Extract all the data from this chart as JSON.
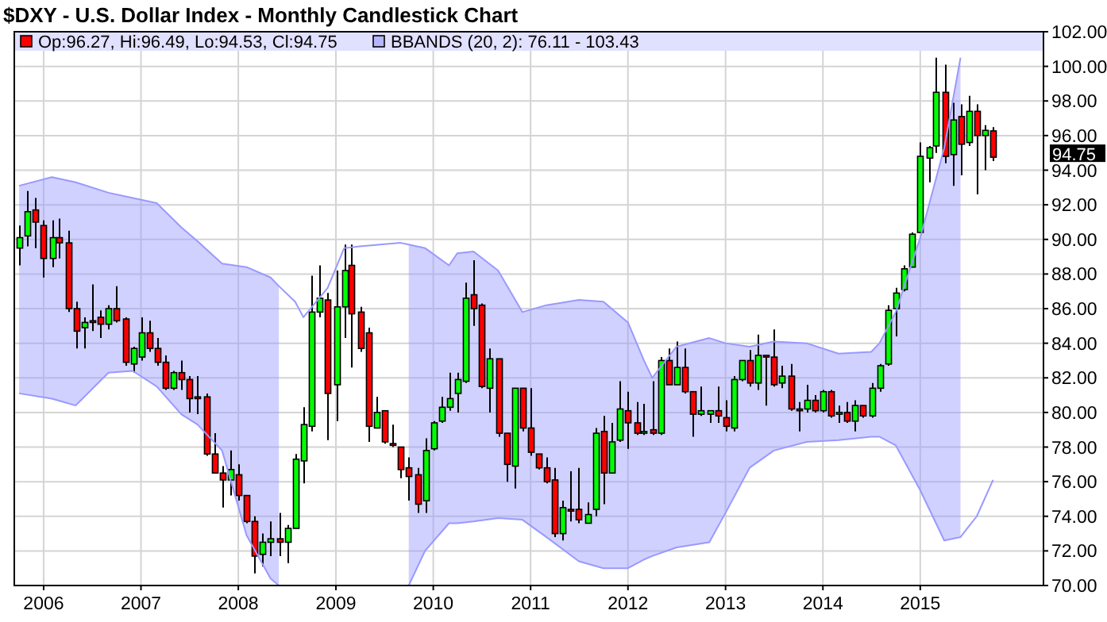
{
  "chart_data": {
    "type": "candlestick",
    "title": "$DXY - U.S. Dollar Index - Monthly Candlestick Chart",
    "x": [
      "2005-10",
      "2005-11",
      "2005-12",
      "2006-01",
      "2006-02",
      "2006-03",
      "2006-04",
      "2006-05",
      "2006-06",
      "2006-07",
      "2006-08",
      "2006-09",
      "2006-10",
      "2006-11",
      "2006-12",
      "2007-01",
      "2007-02",
      "2007-03",
      "2007-04",
      "2007-05",
      "2007-06",
      "2007-07",
      "2007-08",
      "2007-09",
      "2007-10",
      "2007-11",
      "2007-12",
      "2008-01",
      "2008-02",
      "2008-03",
      "2008-04",
      "2008-05",
      "2008-06",
      "2008-07",
      "2008-08",
      "2008-09",
      "2008-10",
      "2008-11",
      "2008-12",
      "2009-01",
      "2009-02",
      "2009-03",
      "2009-04",
      "2009-05",
      "2009-06",
      "2009-07",
      "2009-08",
      "2009-09",
      "2009-10",
      "2009-11",
      "2009-12",
      "2010-01",
      "2010-02",
      "2010-03",
      "2010-04",
      "2010-05",
      "2010-06",
      "2010-07",
      "2010-08",
      "2010-09",
      "2010-10",
      "2010-11",
      "2010-12",
      "2011-01",
      "2011-02",
      "2011-03",
      "2011-04",
      "2011-05",
      "2011-06",
      "2011-07",
      "2011-08",
      "2011-09",
      "2011-10",
      "2011-11",
      "2011-12",
      "2012-01",
      "2012-02",
      "2012-03",
      "2012-04",
      "2012-05",
      "2012-06",
      "2012-07",
      "2012-08",
      "2012-09",
      "2012-10",
      "2012-11",
      "2012-12",
      "2013-01",
      "2013-02",
      "2013-03",
      "2013-04",
      "2013-05",
      "2013-06",
      "2013-07",
      "2013-08",
      "2013-09",
      "2013-10",
      "2013-11",
      "2013-12",
      "2014-01",
      "2014-02",
      "2014-03",
      "2014-04",
      "2014-05",
      "2014-06",
      "2014-07",
      "2014-08",
      "2014-09",
      "2014-10",
      "2014-11",
      "2014-12",
      "2015-01",
      "2015-02",
      "2015-03",
      "2015-04",
      "2015-05",
      "2015-06",
      "2015-07",
      "2015-08",
      "2015-09",
      "2015-10"
    ],
    "series": [
      {
        "name": "Op:96.27, Hi:96.49, Lo:94.53, Cl:94.75",
        "color": "#ff0000",
        "ohlc": [
          [
            89.5,
            90.8,
            88.5,
            90.1
          ],
          [
            90.2,
            92.8,
            89.6,
            91.6
          ],
          [
            91.7,
            92.4,
            89.5,
            91.0
          ],
          [
            90.8,
            91.1,
            87.8,
            88.9
          ],
          [
            88.9,
            91.1,
            88.4,
            90.1
          ],
          [
            90.1,
            91.2,
            88.9,
            89.8
          ],
          [
            89.8,
            90.5,
            85.8,
            86.0
          ],
          [
            86.0,
            86.4,
            83.7,
            84.7
          ],
          [
            84.9,
            85.5,
            83.7,
            85.2
          ],
          [
            85.3,
            87.4,
            84.7,
            85.2
          ],
          [
            85.5,
            85.9,
            84.3,
            85.1
          ],
          [
            85.1,
            86.2,
            84.8,
            86.0
          ],
          [
            86.0,
            87.3,
            85.2,
            85.3
          ],
          [
            85.4,
            85.5,
            82.7,
            82.9
          ],
          [
            82.8,
            83.8,
            82.3,
            83.7
          ],
          [
            83.2,
            85.5,
            83.0,
            84.6
          ],
          [
            84.6,
            85.3,
            83.5,
            83.7
          ],
          [
            83.7,
            84.3,
            82.7,
            82.9
          ],
          [
            82.9,
            83.3,
            81.3,
            81.4
          ],
          [
            81.4,
            82.4,
            81.3,
            82.3
          ],
          [
            82.3,
            83.0,
            81.3,
            81.9
          ],
          [
            81.9,
            82.1,
            80.0,
            80.8
          ],
          [
            80.9,
            82.1,
            79.9,
            80.8
          ],
          [
            80.9,
            81.1,
            77.5,
            77.6
          ],
          [
            77.6,
            78.8,
            76.5,
            76.5
          ],
          [
            76.5,
            76.9,
            74.5,
            76.1
          ],
          [
            76.1,
            77.8,
            75.2,
            76.7
          ],
          [
            76.4,
            77.0,
            74.9,
            75.2
          ],
          [
            75.2,
            75.2,
            73.6,
            73.7
          ],
          [
            73.7,
            74.0,
            70.7,
            71.7
          ],
          [
            71.8,
            73.0,
            71.1,
            72.5
          ],
          [
            72.5,
            73.7,
            71.7,
            72.7
          ],
          [
            72.7,
            74.2,
            71.7,
            72.5
          ],
          [
            72.5,
            73.5,
            71.3,
            73.3
          ],
          [
            73.3,
            77.6,
            73.3,
            77.3
          ],
          [
            77.2,
            80.3,
            75.9,
            79.3
          ],
          [
            79.2,
            87.9,
            78.9,
            85.8
          ],
          [
            85.8,
            88.5,
            85.5,
            86.6
          ],
          [
            86.5,
            86.9,
            78.4,
            81.1
          ],
          [
            81.6,
            88.2,
            79.5,
            86.1
          ],
          [
            86.1,
            89.7,
            84.3,
            88.2
          ],
          [
            88.5,
            89.7,
            82.6,
            85.7
          ],
          [
            85.8,
            86.1,
            83.5,
            83.7
          ],
          [
            84.6,
            84.9,
            78.3,
            79.2
          ],
          [
            79.1,
            80.9,
            79.1,
            80.0
          ],
          [
            80.1,
            80.1,
            78.2,
            78.3
          ],
          [
            78.2,
            79.3,
            78.0,
            78.1
          ],
          [
            78.0,
            78.0,
            76.2,
            76.7
          ],
          [
            76.8,
            77.4,
            74.9,
            76.3
          ],
          [
            76.4,
            76.8,
            74.2,
            74.7
          ],
          [
            74.9,
            78.5,
            74.2,
            77.8
          ],
          [
            77.9,
            79.5,
            77.8,
            79.4
          ],
          [
            79.5,
            80.9,
            79.4,
            80.3
          ],
          [
            80.3,
            82.3,
            80.1,
            80.8
          ],
          [
            81.1,
            82.3,
            80.0,
            81.9
          ],
          [
            81.8,
            87.5,
            81.7,
            86.6
          ],
          [
            86.8,
            88.8,
            85.0,
            86.0
          ],
          [
            86.2,
            86.3,
            81.4,
            81.5
          ],
          [
            81.4,
            83.7,
            80.0,
            83.1
          ],
          [
            83.1,
            83.1,
            78.6,
            78.8
          ],
          [
            78.8,
            78.8,
            76.0,
            77.0
          ],
          [
            76.9,
            81.4,
            75.6,
            81.4
          ],
          [
            81.4,
            81.4,
            78.9,
            79.1
          ],
          [
            79.1,
            81.4,
            77.5,
            77.7
          ],
          [
            77.6,
            77.6,
            76.7,
            76.8
          ],
          [
            76.8,
            77.4,
            75.9,
            76.0
          ],
          [
            76.1,
            76.8,
            72.8,
            73.0
          ],
          [
            73.0,
            74.9,
            72.6,
            74.5
          ],
          [
            74.4,
            76.6,
            73.7,
            74.3
          ],
          [
            74.4,
            76.8,
            73.6,
            73.8
          ],
          [
            73.6,
            74.8,
            73.6,
            74.1
          ],
          [
            74.4,
            79.1,
            74.0,
            78.8
          ],
          [
            78.9,
            79.8,
            74.7,
            76.5
          ],
          [
            76.5,
            79.4,
            76.5,
            78.3
          ],
          [
            78.4,
            81.8,
            78.3,
            80.2
          ],
          [
            80.1,
            81.2,
            77.9,
            79.4
          ],
          [
            79.4,
            80.6,
            78.7,
            78.8
          ],
          [
            78.8,
            80.5,
            78.7,
            78.9
          ],
          [
            79.0,
            81.8,
            78.7,
            78.8
          ],
          [
            78.8,
            83.2,
            78.7,
            83.0
          ],
          [
            83.0,
            83.7,
            81.6,
            81.6
          ],
          [
            81.6,
            84.1,
            81.6,
            82.6
          ],
          [
            82.6,
            83.7,
            81.1,
            81.2
          ],
          [
            81.2,
            81.2,
            78.6,
            79.9
          ],
          [
            79.9,
            81.5,
            79.8,
            80.1
          ],
          [
            79.9,
            80.1,
            79.4,
            80.1
          ],
          [
            80.1,
            81.5,
            79.4,
            79.8
          ],
          [
            79.7,
            80.7,
            78.9,
            79.2
          ],
          [
            79.1,
            82.1,
            78.9,
            81.9
          ],
          [
            81.9,
            83.0,
            81.8,
            83.0
          ],
          [
            83.0,
            83.6,
            81.5,
            81.7
          ],
          [
            81.7,
            84.5,
            81.3,
            83.3
          ],
          [
            83.3,
            83.3,
            80.4,
            83.2
          ],
          [
            83.2,
            84.8,
            81.5,
            81.6
          ],
          [
            81.7,
            82.7,
            81.4,
            82.1
          ],
          [
            82.1,
            82.8,
            80.1,
            80.2
          ],
          [
            80.2,
            80.6,
            78.9,
            80.1
          ],
          [
            80.2,
            81.6,
            80.0,
            80.7
          ],
          [
            80.7,
            81.0,
            80.0,
            80.1
          ],
          [
            80.1,
            81.3,
            80.0,
            81.2
          ],
          [
            81.2,
            81.3,
            79.7,
            79.8
          ],
          [
            79.9,
            80.4,
            79.4,
            80.0
          ],
          [
            80.0,
            80.6,
            79.4,
            79.5
          ],
          [
            79.5,
            80.7,
            78.9,
            80.4
          ],
          [
            80.4,
            80.4,
            79.7,
            79.8
          ],
          [
            79.8,
            81.7,
            79.7,
            81.4
          ],
          [
            81.4,
            82.8,
            81.2,
            82.7
          ],
          [
            82.8,
            86.2,
            82.7,
            85.9
          ],
          [
            86.0,
            87.2,
            84.4,
            86.9
          ],
          [
            87.1,
            88.5,
            87.0,
            88.3
          ],
          [
            88.4,
            90.4,
            88.4,
            90.3
          ],
          [
            90.4,
            95.6,
            90.4,
            94.8
          ],
          [
            94.7,
            95.4,
            93.3,
            95.3
          ],
          [
            95.4,
            100.5,
            95.0,
            98.5
          ],
          [
            98.5,
            100.1,
            94.4,
            94.8
          ],
          [
            94.9,
            97.9,
            93.1,
            96.9
          ],
          [
            97.1,
            97.8,
            93.7,
            95.5
          ],
          [
            95.6,
            98.3,
            95.4,
            97.4
          ],
          [
            97.4,
            97.8,
            92.6,
            96.0
          ],
          [
            96.0,
            96.6,
            94.0,
            96.3
          ],
          [
            96.27,
            96.49,
            94.53,
            94.75
          ]
        ],
        "colors": [
          "#00ff00",
          "#00ff00",
          "#ff0000",
          "#ff0000",
          "#00ff00",
          "#ff0000",
          "#ff0000",
          "#ff0000",
          "#00ff00",
          "#ff0000",
          "#ff0000",
          "#00ff00",
          "#ff0000",
          "#ff0000",
          "#00ff00",
          "#00ff00",
          "#ff0000",
          "#ff0000",
          "#ff0000",
          "#00ff00",
          "#ff0000",
          "#ff0000",
          "#ff0000",
          "#ff0000",
          "#ff0000",
          "#ff0000",
          "#00ff00",
          "#ff0000",
          "#ff0000",
          "#ff0000",
          "#00ff00",
          "#00ff00",
          "#ff0000",
          "#00ff00",
          "#00ff00",
          "#00ff00",
          "#00ff00",
          "#00ff00",
          "#ff0000",
          "#00ff00",
          "#00ff00",
          "#ff0000",
          "#ff0000",
          "#ff0000",
          "#00ff00",
          "#ff0000",
          "#ff0000",
          "#ff0000",
          "#ff0000",
          "#ff0000",
          "#00ff00",
          "#00ff00",
          "#00ff00",
          "#00ff00",
          "#00ff00",
          "#00ff00",
          "#ff0000",
          "#ff0000",
          "#00ff00",
          "#ff0000",
          "#ff0000",
          "#00ff00",
          "#ff0000",
          "#ff0000",
          "#ff0000",
          "#ff0000",
          "#ff0000",
          "#00ff00",
          "#ff0000",
          "#ff0000",
          "#00ff00",
          "#00ff00",
          "#ff0000",
          "#00ff00",
          "#00ff00",
          "#ff0000",
          "#ff0000",
          "#00ff00",
          "#ff0000",
          "#00ff00",
          "#ff0000",
          "#00ff00",
          "#ff0000",
          "#ff0000",
          "#00ff00",
          "#00ff00",
          "#ff0000",
          "#ff0000",
          "#00ff00",
          "#00ff00",
          "#ff0000",
          "#00ff00",
          "#ff0000",
          "#ff0000",
          "#00ff00",
          "#ff0000",
          "#ff0000",
          "#00ff00",
          "#ff0000",
          "#00ff00",
          "#ff0000",
          "#00ff00",
          "#ff0000",
          "#00ff00",
          "#ff0000",
          "#00ff00",
          "#00ff00",
          "#00ff00",
          "#00ff00",
          "#00ff00",
          "#00ff00",
          "#00ff00",
          "#00ff00",
          "#00ff00",
          "#ff0000",
          "#00ff00",
          "#ff0000",
          "#00ff00",
          "#ff0000",
          "#00ff00",
          "#ff0000"
        ]
      },
      {
        "type": "line",
        "name": "BBANDS (20, 2): 76.11 - 103.43",
        "color": "#9999ff",
        "x": [
          "2005-10",
          "2006-02",
          "2006-05",
          "2006-09",
          "2006-12",
          "2007-03",
          "2007-06",
          "2007-08",
          "2007-11",
          "2008-02",
          "2008-05",
          "2008-06",
          "2008-08",
          "2008-09",
          "2008-12",
          "2009-02",
          "2009-04",
          "2009-09",
          "2009-10",
          "2009-12",
          "2010-03",
          "2010-04",
          "2010-06",
          "2010-09",
          "2010-12",
          "2011-03",
          "2011-07",
          "2011-10",
          "2012-01",
          "2012-03",
          "2012-04",
          "2012-07",
          "2012-11",
          "2013-01",
          "2013-04",
          "2013-07",
          "2013-11",
          "2014-03",
          "2014-07",
          "2014-08",
          "2014-10",
          "2015-01",
          "2015-04",
          "2015-06"
        ],
        "values": [
          93.1,
          93.6,
          93.3,
          92.7,
          92.4,
          92.1,
          90.7,
          89.9,
          88.6,
          88.4,
          87.8,
          87.3,
          86.4,
          85.5,
          87.2,
          89.5,
          89.6,
          89.8,
          89.7,
          89.5,
          88.5,
          89.2,
          89.3,
          88.2,
          85.8,
          86.2,
          86.5,
          86.4,
          85.2,
          83.0,
          82.0,
          83.8,
          84.3,
          84.0,
          83.8,
          84.1,
          84.0,
          83.4,
          83.5,
          84.0,
          85.8,
          90.1,
          95.3,
          100.5
        ],
        "lower": [
          81.1,
          80.8,
          80.4,
          82.3,
          82.4,
          81.5,
          79.9,
          79.3,
          77.8,
          72.9,
          70.4,
          70.0,
          null,
          null,
          null,
          null,
          null,
          null,
          70.0,
          72.0,
          73.6,
          73.6,
          73.7,
          73.9,
          73.8,
          72.8,
          71.4,
          71.0,
          71.0,
          71.5,
          71.7,
          72.2,
          72.5,
          74.2,
          76.8,
          77.8,
          78.3,
          78.4,
          78.6,
          78.6,
          78.1,
          75.5,
          72.6,
          72.8
        ],
        "upper": [
          93.1,
          93.6,
          93.3,
          92.7,
          92.4,
          92.1,
          90.7,
          89.9,
          88.6,
          88.4,
          87.8,
          87.3,
          null,
          null,
          null,
          null,
          null,
          null,
          89.7,
          89.5,
          88.5,
          89.2,
          89.3,
          88.2,
          85.8,
          86.2,
          86.5,
          86.4,
          85.2,
          83.0,
          82.0,
          83.8,
          84.3,
          84.0,
          83.8,
          84.1,
          84.0,
          83.4,
          83.5,
          84.0,
          85.8,
          90.1,
          95.3,
          100.5
        ]
      },
      {
        "type": "line",
        "color": "#9999ff",
        "x": [
          "2005-10",
          "2006-02",
          "2006-05",
          "2006-09",
          "2006-12",
          "2007-03",
          "2007-06",
          "2007-08",
          "2007-11",
          "2008-02",
          "2008-05",
          "2008-06",
          "2008-08",
          "2008-09",
          "2008-12",
          "2009-02",
          "2009-04",
          "2009-09",
          "2009-10",
          "2009-12",
          "2010-03",
          "2010-04",
          "2010-06",
          "2010-09",
          "2010-12",
          "2011-03",
          "2011-07",
          "2011-10",
          "2012-01",
          "2012-03",
          "2012-04",
          "2012-07",
          "2012-11",
          "2013-01",
          "2013-04",
          "2013-07",
          "2013-11",
          "2014-03",
          "2014-07",
          "2014-08",
          "2014-10",
          "2015-01",
          "2015-04",
          "2015-06",
          "2015-07",
          "2015-08",
          "2015-10"
        ],
        "values": [
          81.1,
          80.8,
          80.4,
          82.3,
          82.4,
          81.5,
          79.9,
          79.3,
          77.8,
          72.9,
          70.4,
          70.0,
          null,
          null,
          null,
          null,
          null,
          null,
          70.0,
          72.0,
          73.6,
          73.6,
          73.7,
          73.9,
          73.8,
          72.8,
          71.4,
          71.0,
          71.0,
          71.5,
          71.7,
          72.2,
          72.5,
          74.2,
          76.8,
          77.8,
          78.3,
          78.4,
          78.6,
          78.6,
          78.1,
          75.5,
          72.6,
          72.8,
          73.4,
          74.0,
          76.1
        ]
      }
    ],
    "xlim": [
      "2005-09-13",
      "2016-04-07"
    ],
    "xticks": [
      "2006",
      "2007",
      "2008",
      "2009",
      "2010",
      "2011",
      "2012",
      "2013",
      "2014",
      "2015"
    ],
    "ylim": [
      70,
      102
    ],
    "yticks": [
      {
        "value": 70,
        "label": "70.00"
      },
      {
        "value": 72,
        "label": "72.00"
      },
      {
        "value": 74,
        "label": "74.00"
      },
      {
        "value": 76,
        "label": "76.00"
      },
      {
        "value": 78,
        "label": "78.00"
      },
      {
        "value": 80,
        "label": "80.00"
      },
      {
        "value": 82,
        "label": "82.00"
      },
      {
        "value": 84,
        "label": "84.00"
      },
      {
        "value": 86,
        "label": "86.00"
      },
      {
        "value": 88,
        "label": "88.00"
      },
      {
        "value": 90,
        "label": "90.00"
      },
      {
        "value": 92,
        "label": "92.00"
      },
      {
        "value": 94,
        "label": "94.00"
      },
      {
        "value": 96,
        "label": "96.00"
      },
      {
        "value": 98,
        "label": "98.00"
      },
      {
        "value": 100,
        "label": "100.00"
      },
      {
        "value": 102,
        "label": "102.00"
      }
    ],
    "grid": true,
    "legend": "top",
    "annotations": [
      "94.75"
    ]
  }
}
